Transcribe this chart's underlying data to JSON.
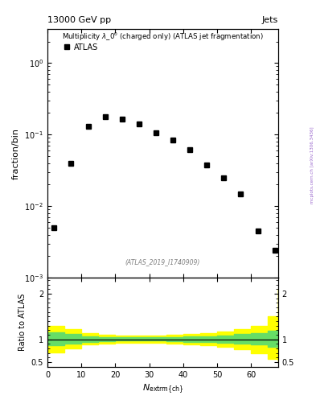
{
  "title_left": "13000 GeV pp",
  "title_right": "Jets",
  "main_title": "Multiplicity $\\lambda\\_0^0$ (charged only) (ATLAS jet fragmentation)",
  "ylabel_main": "fraction/bin",
  "ylabel_ratio": "Ratio to ATLAS",
  "xlabel": "$N_{\\mathrm{extrm}\\{ch\\}}$",
  "watermark": "(ATLAS_2019_I1740909)",
  "side_text": "mcplots.cern.ch [arXiv:1306.3436]",
  "legend_label": "ATLAS",
  "x_data_pts": [
    2,
    7,
    12,
    17,
    22,
    27,
    32,
    37,
    42,
    47,
    52,
    57,
    62,
    67
  ],
  "y_data_pts": [
    0.005,
    0.04,
    0.13,
    0.18,
    0.165,
    0.14,
    0.105,
    0.085,
    0.062,
    0.038,
    0.025,
    0.015,
    0.0045,
    0.0024
  ],
  "ylim_main": [
    0.001,
    3.0
  ],
  "xlim": [
    0,
    68
  ],
  "ylim_ratio": [
    0.4,
    2.35
  ],
  "green_band_x": [
    0,
    5,
    10,
    15,
    20,
    25,
    30,
    35,
    40,
    45,
    50,
    55,
    60,
    65,
    68
  ],
  "green_band_upper": [
    1.15,
    1.12,
    1.07,
    1.05,
    1.04,
    1.04,
    1.04,
    1.05,
    1.06,
    1.07,
    1.09,
    1.11,
    1.13,
    1.18,
    1.22
  ],
  "green_band_lower": [
    0.87,
    0.9,
    0.94,
    0.96,
    0.97,
    0.97,
    0.97,
    0.96,
    0.95,
    0.94,
    0.92,
    0.9,
    0.88,
    0.83,
    0.8
  ],
  "yellow_band_x": [
    0,
    5,
    10,
    15,
    20,
    25,
    30,
    35,
    40,
    45,
    50,
    55,
    60,
    65,
    68
  ],
  "yellow_band_upper": [
    1.3,
    1.22,
    1.13,
    1.1,
    1.08,
    1.08,
    1.09,
    1.1,
    1.12,
    1.14,
    1.17,
    1.22,
    1.3,
    1.5,
    2.1
  ],
  "yellow_band_lower": [
    0.72,
    0.8,
    0.88,
    0.91,
    0.93,
    0.93,
    0.92,
    0.91,
    0.89,
    0.87,
    0.84,
    0.79,
    0.7,
    0.57,
    0.52
  ],
  "marker_color": "black",
  "marker": "s",
  "marker_size": 4,
  "bg_color": "white"
}
